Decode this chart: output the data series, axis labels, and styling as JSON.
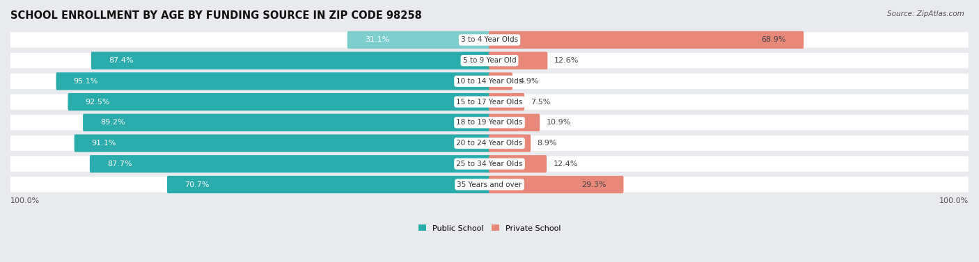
{
  "title": "SCHOOL ENROLLMENT BY AGE BY FUNDING SOURCE IN ZIP CODE 98258",
  "source": "Source: ZipAtlas.com",
  "categories": [
    "3 to 4 Year Olds",
    "5 to 9 Year Old",
    "10 to 14 Year Olds",
    "15 to 17 Year Olds",
    "18 to 19 Year Olds",
    "20 to 24 Year Olds",
    "25 to 34 Year Olds",
    "35 Years and over"
  ],
  "public_pct": [
    31.1,
    87.4,
    95.1,
    92.5,
    89.2,
    91.1,
    87.7,
    70.7
  ],
  "private_pct": [
    68.9,
    12.6,
    4.9,
    7.5,
    10.9,
    8.9,
    12.4,
    29.3
  ],
  "public_color_normal": "#2AACAC",
  "public_color_light": "#7ECECE",
  "private_color": "#E8887A",
  "bg_color": "#E8EAED",
  "row_bg": "#FFFFFF",
  "label_color_white": "#FFFFFF",
  "label_color_dark": "#444444",
  "axis_label_left": "100.0%",
  "axis_label_right": "100.0%",
  "legend_public": "Public School",
  "legend_private": "Private School",
  "title_fontsize": 10.5,
  "source_fontsize": 7.5,
  "bar_label_fontsize": 8,
  "category_fontsize": 7.5,
  "axis_fontsize": 8
}
